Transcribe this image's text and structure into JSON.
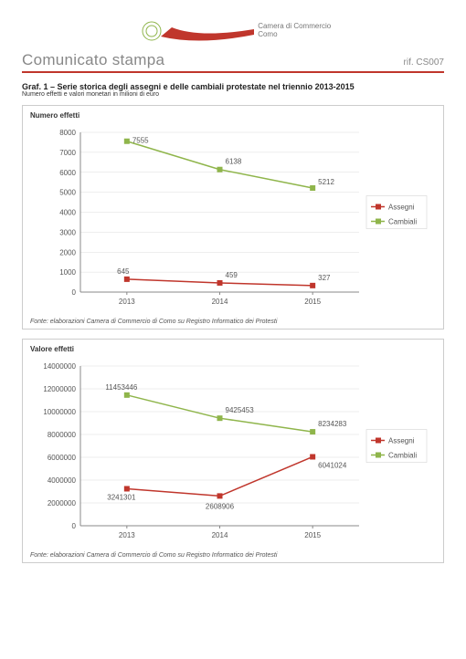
{
  "logo": {
    "line1": "Camera di Commercio",
    "line2": "Como"
  },
  "titlebar": {
    "main": "Comunicato stampa",
    "ref": "rif. CS007"
  },
  "graf": {
    "title": "Graf. 1 – Serie storica degli assegni e delle cambiali protestate nel triennio 2013-2015",
    "subtitle": "Numero effetti e valori monetari in milioni di euro"
  },
  "chart1": {
    "title": "Numero effetti",
    "categories": [
      "2013",
      "2014",
      "2015"
    ],
    "series": {
      "assegni": {
        "label": "Assegni",
        "color": "#c0362c",
        "values": [
          645,
          459,
          327
        ]
      },
      "cambiali": {
        "label": "Cambiali",
        "color": "#8fb54b",
        "values": [
          7555,
          6138,
          5212
        ]
      }
    },
    "ylim": [
      0,
      8000
    ],
    "ytick_step": 1000,
    "caption": "Fonte: elaborazioni Camera di Commercio di Como su Registro Informatico dei Protesti"
  },
  "chart2": {
    "title": "Valore effetti",
    "categories": [
      "2013",
      "2014",
      "2015"
    ],
    "series": {
      "assegni": {
        "label": "Assegni",
        "color": "#c0362c",
        "values": [
          3241301,
          2608906,
          6041024
        ]
      },
      "cambiali": {
        "label": "Cambiali",
        "color": "#8fb54b",
        "values": [
          11453446,
          9425453,
          8234283
        ]
      }
    },
    "ylim": [
      0,
      14000000
    ],
    "ytick_step": 2000000,
    "caption": "Fonte: elaborazioni Camera di Commercio di Como su Registro Informatico dei Protesti"
  },
  "colors": {
    "grid": "#dddddd",
    "axis": "#888888",
    "border": "#cccccc",
    "accent": "#c0362c"
  }
}
